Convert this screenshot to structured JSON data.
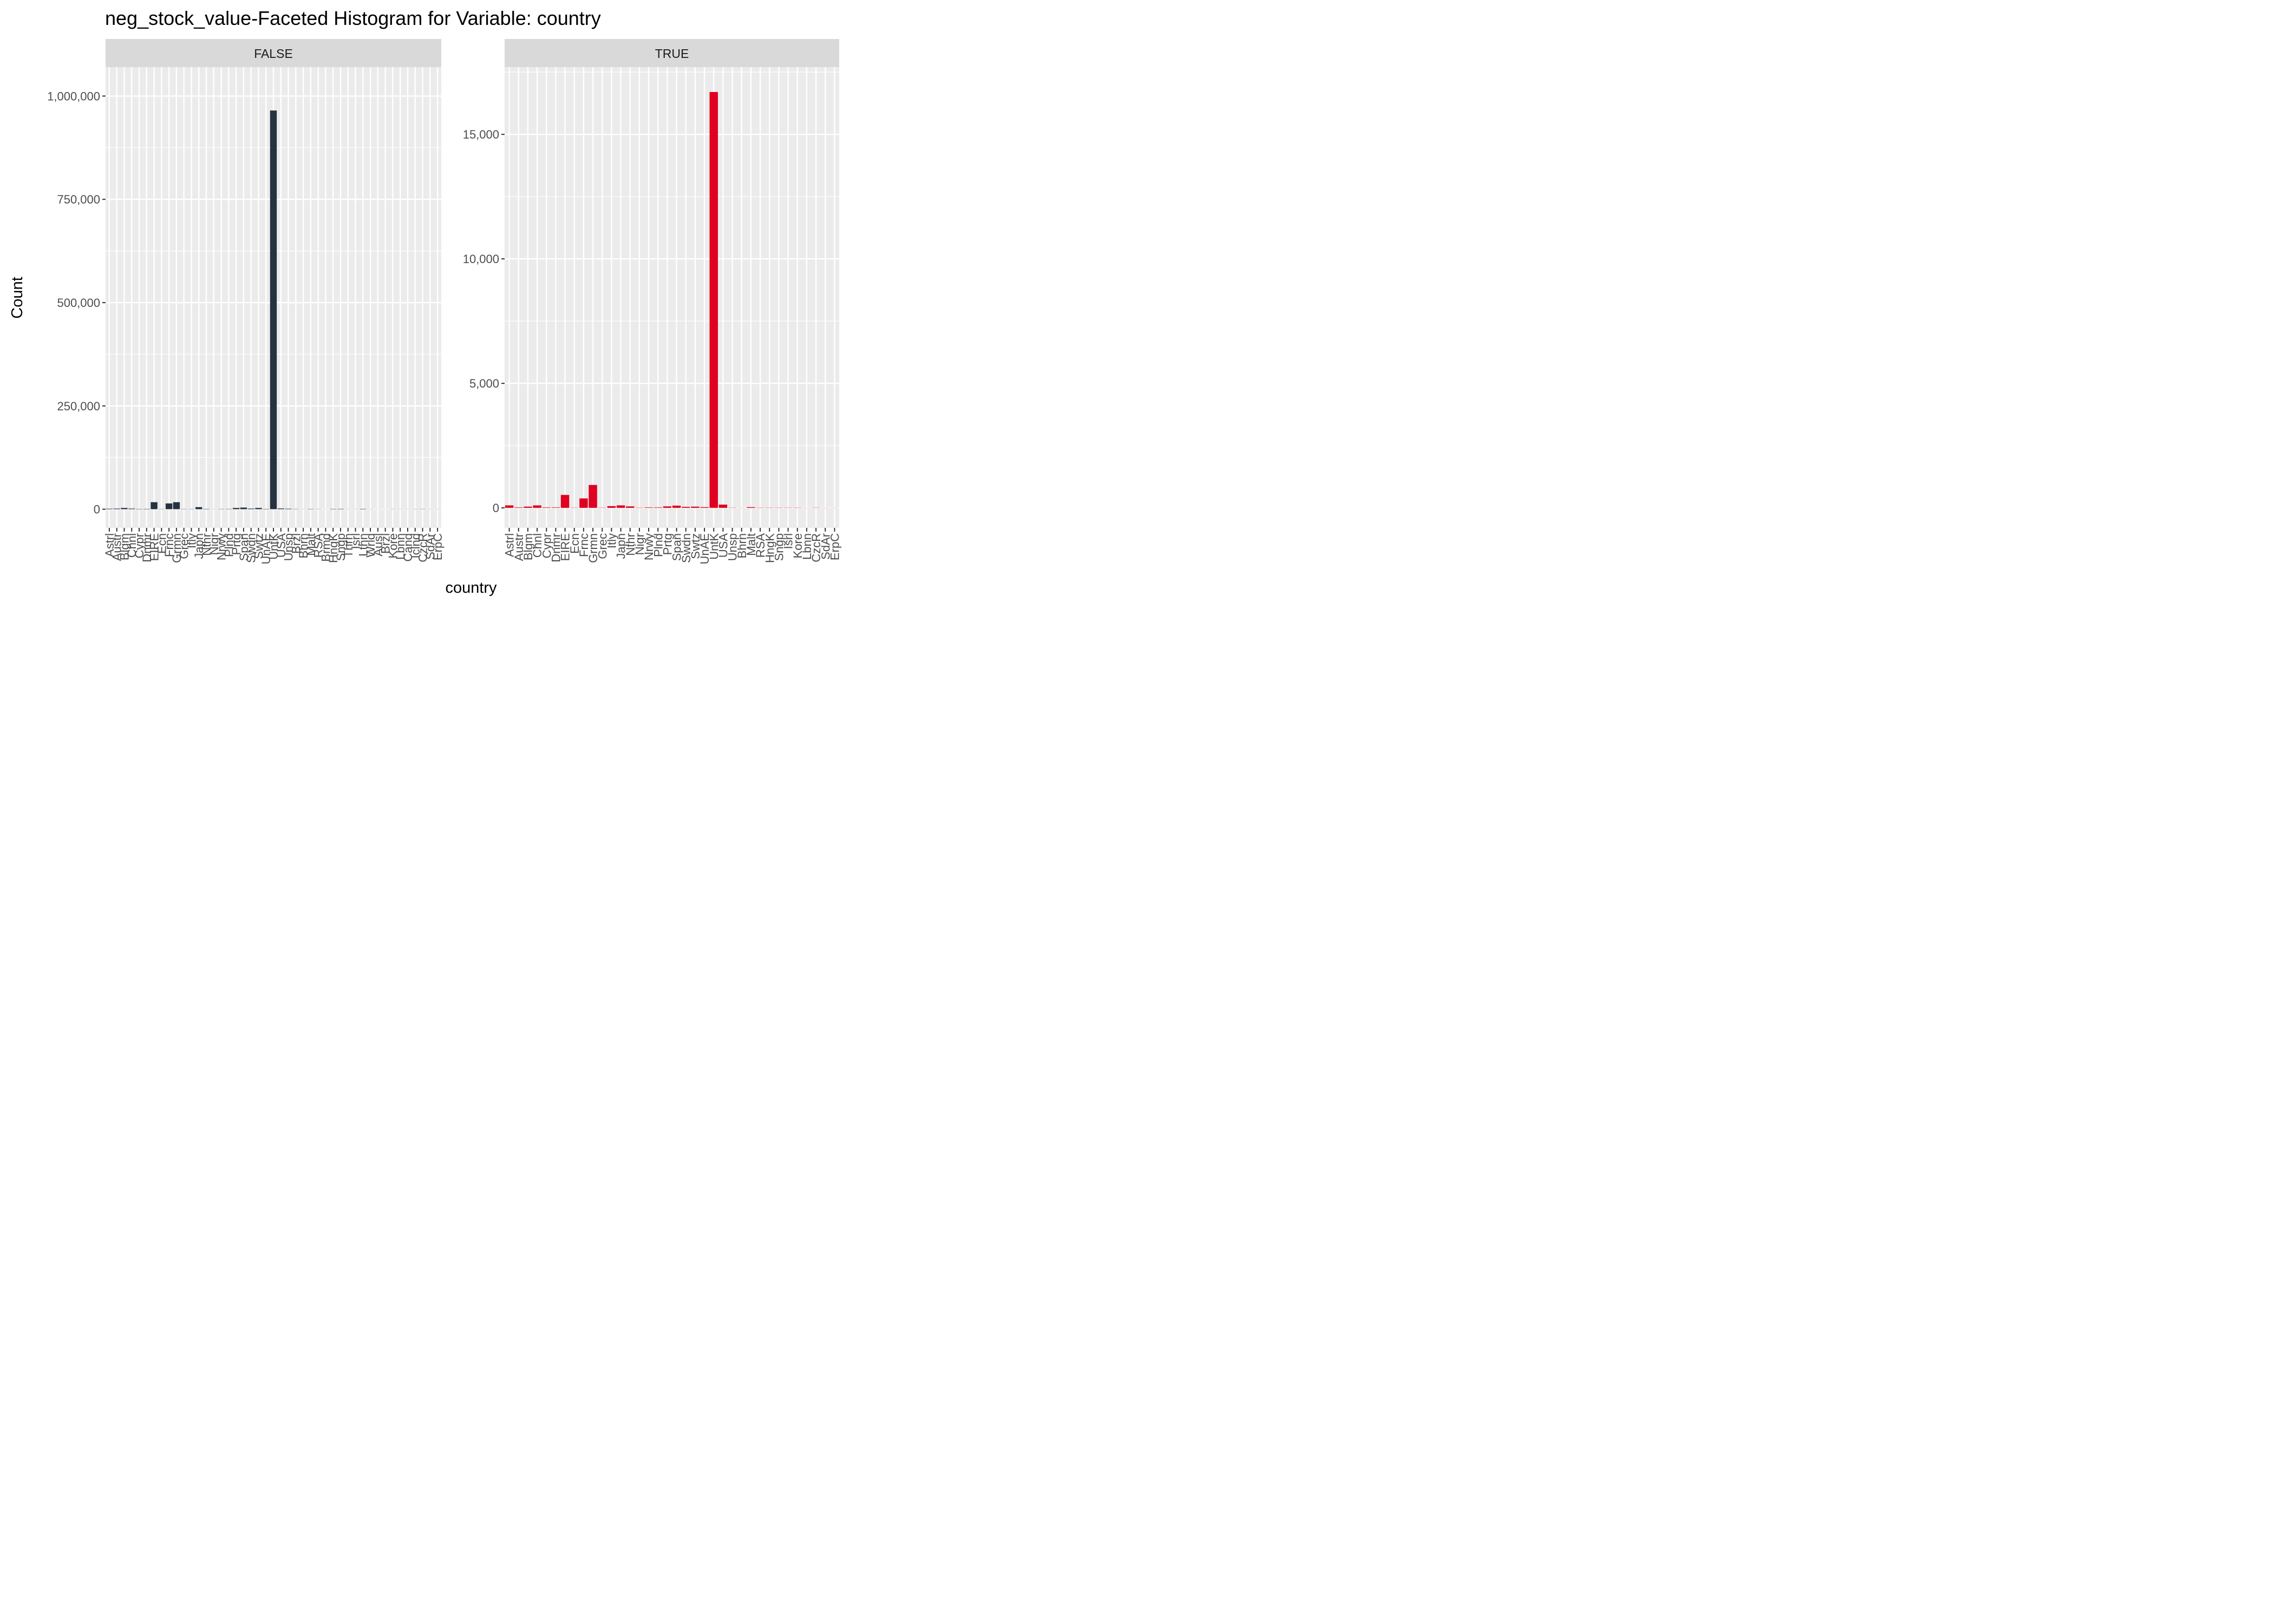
{
  "chart_data": {
    "type": "bar",
    "title": "neg_stock_value-Faceted Histogram for Variable: country",
    "xlabel": "country",
    "ylabel": "Count",
    "grid": true,
    "legend": "none",
    "panels": [
      {
        "label": "FALSE",
        "color": "#253340",
        "ylim": [
          -45000,
          1070000
        ],
        "yticks": [
          0,
          250000,
          500000,
          750000,
          1000000
        ],
        "ytick_labels": [
          "0",
          "250,000",
          "500,000",
          "750,000",
          "1,000,000"
        ],
        "categories": [
          "Astrl",
          "Austr",
          "Blgm",
          "Chnl",
          "Cypr",
          "Dnmr",
          "EIRE",
          "Ecn",
          "Frnc",
          "Grmn",
          "Grec",
          "Itly",
          "Japn",
          "Nthr",
          "Nigr",
          "Nrwy",
          "Plnd",
          "Prtg",
          "Span",
          "Swdn",
          "Swtz",
          "UnAE",
          "UntK",
          "USA",
          "Unsp",
          "Brzl",
          "Bhrn",
          "Malt",
          "RSA",
          "Brmd",
          "HngK",
          "Sngp",
          "Thrn",
          "Isrl",
          "Lthn",
          "Wrld",
          "Ausl",
          "Brzl",
          "Kore",
          "Lbnn",
          "Cand",
          "Iclnd",
          "CzcR",
          "SdAr",
          "ErpC"
        ],
        "values": [
          1200,
          1500,
          3000,
          1500,
          800,
          900,
          17000,
          500,
          14000,
          17000,
          600,
          500,
          5000,
          800,
          300,
          600,
          700,
          3000,
          4000,
          1500,
          3000,
          800,
          965000,
          1800,
          1200,
          600,
          300,
          700,
          400,
          200,
          800,
          900,
          300,
          300,
          900,
          300,
          200,
          200,
          400,
          300,
          300,
          400,
          500,
          300,
          300
        ]
      },
      {
        "label": "TRUE",
        "color": "#e00020",
        "ylim": [
          -800,
          17700
        ],
        "yticks": [
          0,
          5000,
          10000,
          15000
        ],
        "ytick_labels": [
          "0",
          "5,000",
          "10,000",
          "15,000"
        ],
        "categories": [
          "Astrl",
          "Austr",
          "Blgm",
          "Chnl",
          "Cypr",
          "Dnmr",
          "EIRE",
          "Ecn",
          "Frnc",
          "Grmn",
          "Grec",
          "Itly",
          "Japn",
          "Nthr",
          "Nigr",
          "Nrwy",
          "Plnd",
          "Prtg",
          "Span",
          "Swdn",
          "Swtz",
          "UnAE",
          "UntK",
          "USA",
          "Unsp",
          "Bhrn",
          "Malt",
          "RSA",
          "HngK",
          "Sngp",
          "Isrl",
          "Kore",
          "Lbnn",
          "CzcR",
          "SdAr",
          "ErpC"
        ],
        "values": [
          100,
          20,
          50,
          100,
          20,
          20,
          520,
          10,
          380,
          920,
          10,
          70,
          100,
          60,
          10,
          20,
          20,
          60,
          90,
          40,
          50,
          30,
          16700,
          130,
          10,
          5,
          30,
          10,
          10,
          10,
          10,
          10,
          5,
          10,
          5,
          5
        ]
      }
    ]
  }
}
